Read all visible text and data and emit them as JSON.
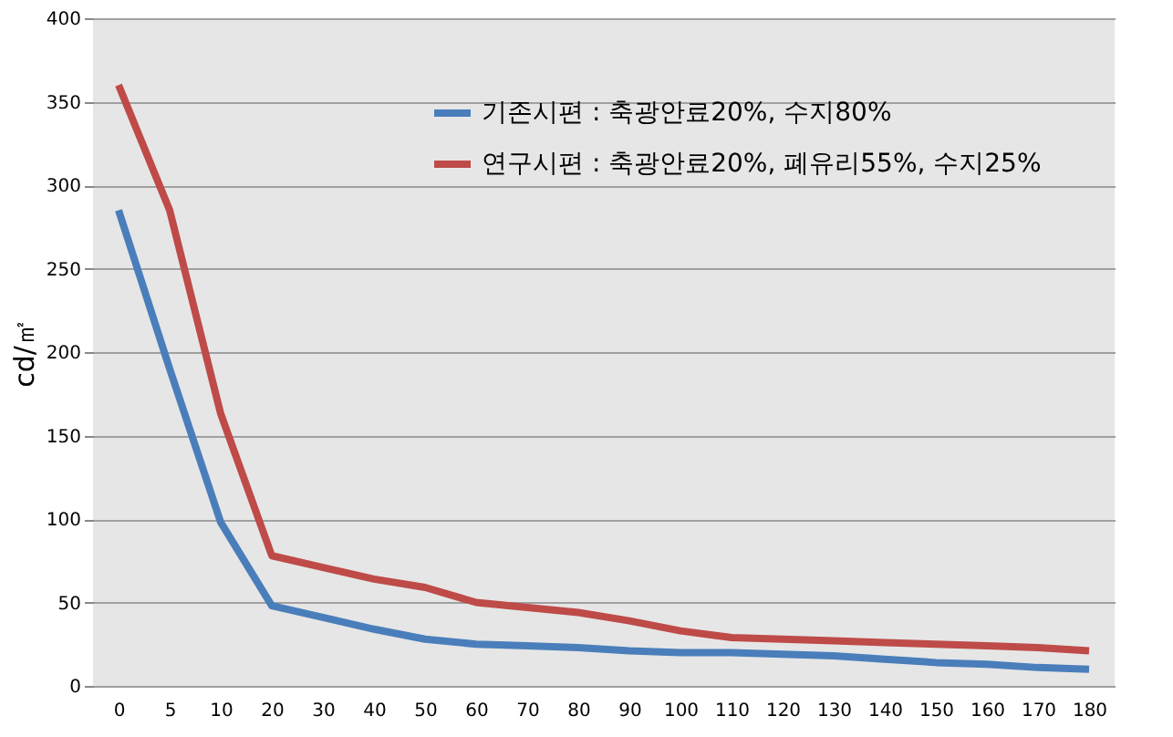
{
  "chart_data": {
    "type": "line",
    "ylabel": "cd/㎡",
    "categories": [
      "0",
      "5",
      "10",
      "20",
      "30",
      "40",
      "50",
      "60",
      "70",
      "80",
      "90",
      "100",
      "110",
      "120",
      "130",
      "140",
      "150",
      "160",
      "170",
      "180"
    ],
    "series": [
      {
        "name": "기존시편 : 축광안료20%, 수지80%",
        "color": "#4a7ebb",
        "values": [
          285,
          190,
          98,
          48,
          41,
          34,
          28,
          25,
          24,
          23,
          21,
          20,
          20,
          19,
          18,
          16,
          14,
          13,
          11,
          10
        ]
      },
      {
        "name": "연구시편 : 축광안료20%, 폐유리55%, 수지25%",
        "color": "#be4b48",
        "values": [
          360,
          285,
          163,
          78,
          71,
          64,
          59,
          50,
          47,
          44,
          39,
          33,
          29,
          28,
          27,
          26,
          25,
          24,
          23,
          21
        ]
      }
    ],
    "ylim": [
      0,
      400
    ],
    "yticks": [
      0,
      50,
      100,
      150,
      200,
      250,
      300,
      350,
      400
    ],
    "grid": "y",
    "legend": "top right",
    "marker": "none",
    "line_style": "solid"
  }
}
